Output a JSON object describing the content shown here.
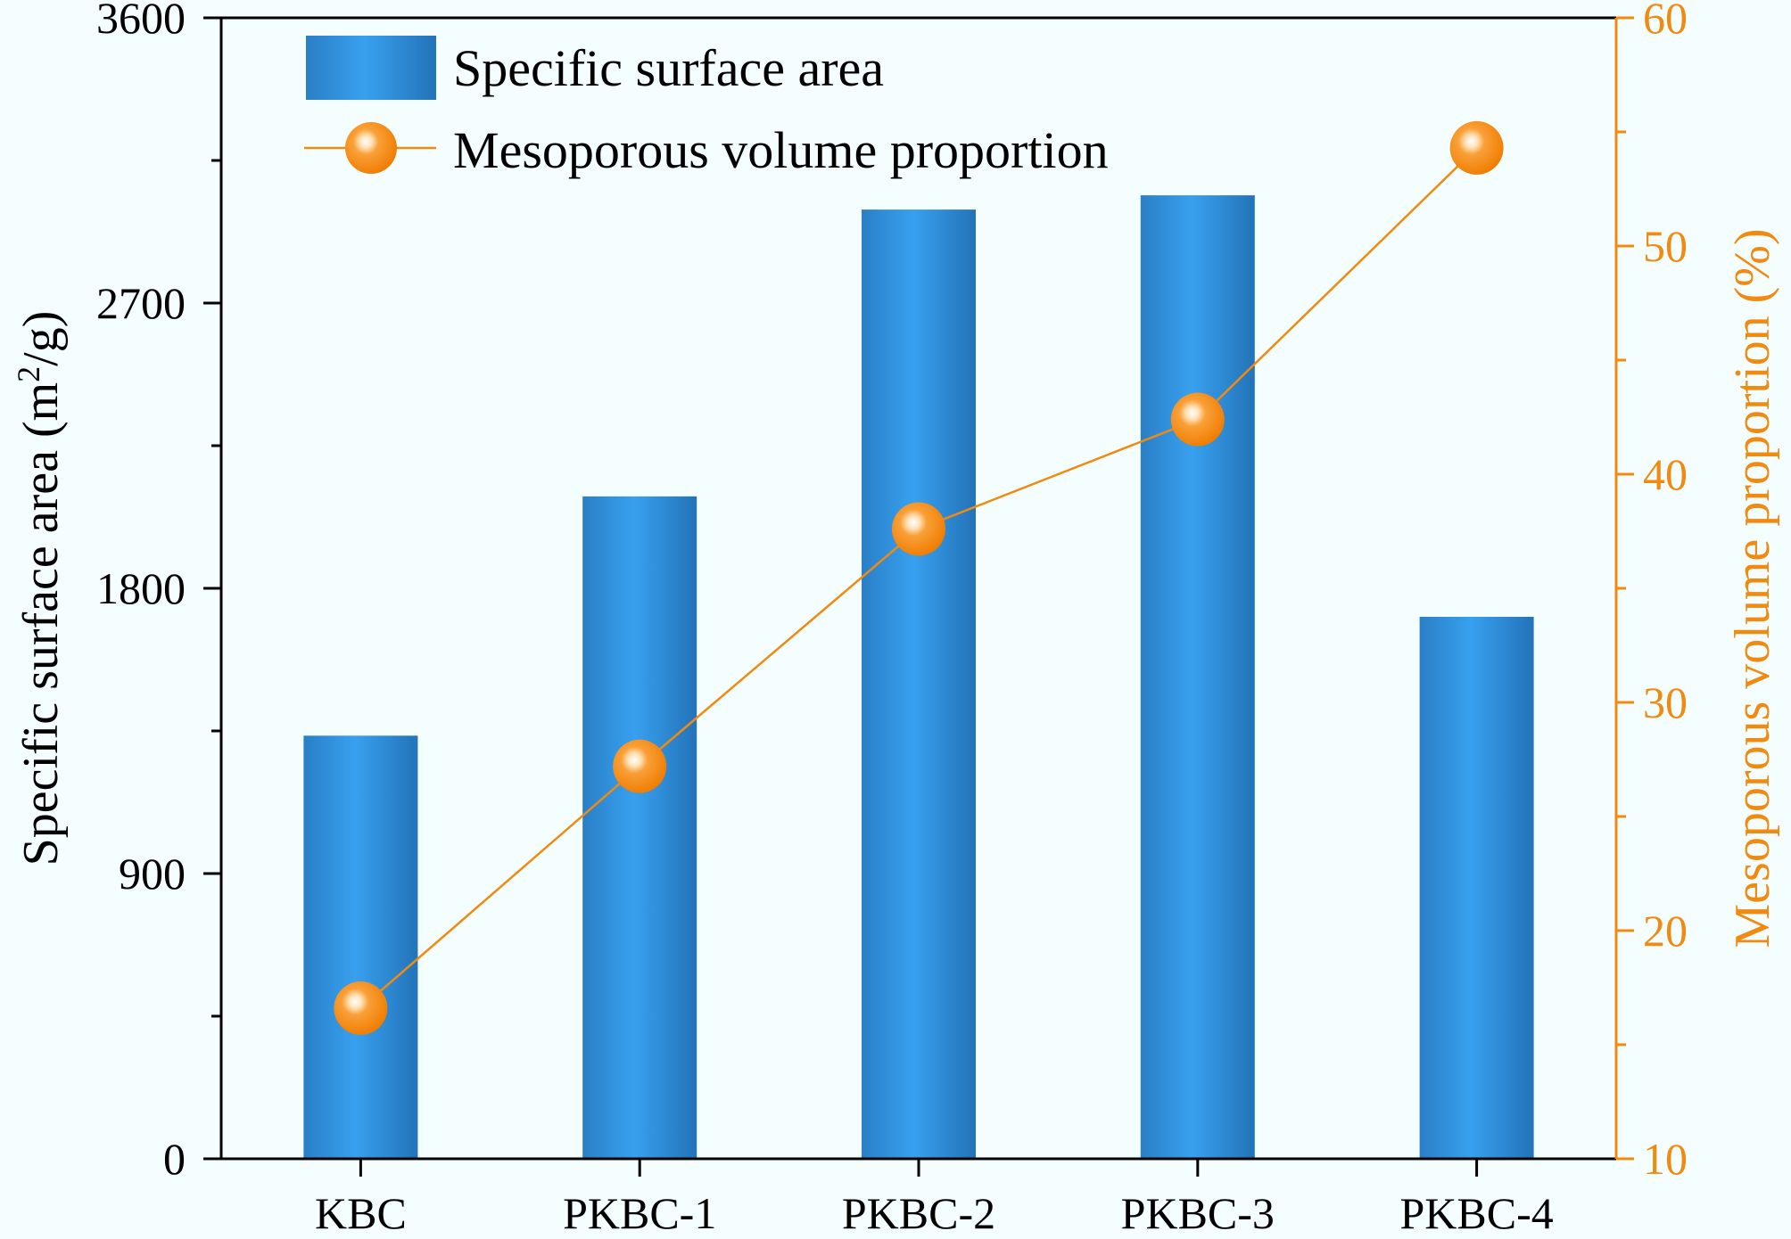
{
  "chart_data": {
    "type": "bar+line",
    "categories": [
      "KBC",
      "PKBC-1",
      "PKBC-2",
      "PKBC-3",
      "PKBC-4"
    ],
    "series": [
      {
        "name": "Specific surface area",
        "type": "bar",
        "axis": "left",
        "values": [
          1335,
          2090,
          2995,
          3040,
          1710
        ]
      },
      {
        "name": "Mesoporous volume proportion",
        "type": "line",
        "axis": "right",
        "values": [
          16.6,
          27.2,
          37.6,
          42.4,
          54.3
        ]
      }
    ],
    "left_axis": {
      "label_prefix": "Specific surface area (m",
      "label_sup": "2",
      "label_suffix": "/g)",
      "ylim": [
        0,
        3600
      ],
      "ticks": [
        "0",
        "900",
        "1800",
        "2700",
        "3600"
      ]
    },
    "right_axis": {
      "label": "Mesoporous volume proportion (%)",
      "ylim": [
        10,
        60
      ],
      "ticks": [
        "10",
        "20",
        "30",
        "40",
        "50",
        "60"
      ]
    },
    "legend": [
      {
        "label": "Specific surface area"
      },
      {
        "label": "Mesoporous volume proportion"
      }
    ],
    "colors": {
      "bar": "#2f8fde",
      "bar_dark": "#1f6fb0",
      "line": "#f08a10",
      "marker": "#f5850a",
      "background": "#f5fefe"
    }
  }
}
